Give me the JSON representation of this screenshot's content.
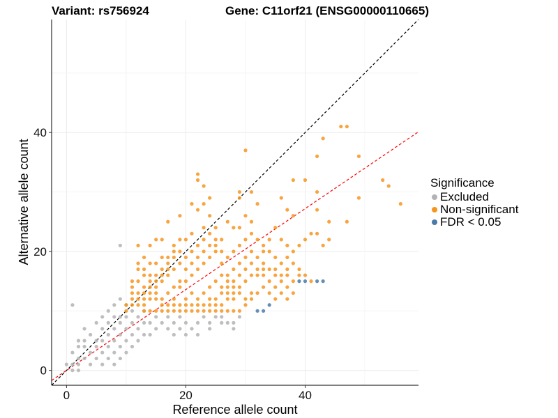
{
  "header": {
    "variant": "Variant: rs756924",
    "gene": "Gene: C11orf21 (ENSG00000110665)"
  },
  "legend": {
    "title": "Significance",
    "items": [
      {
        "label": "Excluded",
        "color": "#b3b3b3"
      },
      {
        "label": "Non-significant",
        "color": "#f7941d"
      },
      {
        "label": "FDR < 0.05",
        "color": "#4a7aa8"
      }
    ]
  },
  "chart_data": {
    "type": "scatter",
    "xlabel": "Reference allele count",
    "ylabel": "Alternative allele count",
    "xlim": [
      -2.5,
      59
    ],
    "ylim": [
      -2.5,
      59
    ],
    "xticks": [
      0,
      20,
      40
    ],
    "yticks": [
      0,
      20,
      40
    ],
    "grid": true,
    "lines": [
      {
        "name": "y = x",
        "color": "#000000",
        "slope": 1,
        "intercept": 0,
        "dashed": true
      },
      {
        "name": "fit",
        "color": "#ff0000",
        "slope": 0.68,
        "intercept": 0,
        "dashed": true
      }
    ],
    "series": [
      {
        "group": "Excluded",
        "color": "#b3b3b3",
        "points": [
          [
            1,
            11
          ],
          [
            9,
            21
          ],
          [
            0,
            1
          ],
          [
            1,
            0
          ],
          [
            1,
            1
          ],
          [
            1,
            3
          ],
          [
            2,
            0
          ],
          [
            2,
            1
          ],
          [
            2,
            2
          ],
          [
            2,
            4
          ],
          [
            2,
            5
          ],
          [
            3,
            2
          ],
          [
            3,
            4
          ],
          [
            3,
            5
          ],
          [
            3,
            7
          ],
          [
            4,
            1
          ],
          [
            4,
            3
          ],
          [
            4,
            6
          ],
          [
            5,
            2
          ],
          [
            5,
            4
          ],
          [
            5,
            5
          ],
          [
            5,
            8
          ],
          [
            6,
            1
          ],
          [
            6,
            3
          ],
          [
            6,
            5
          ],
          [
            6,
            7
          ],
          [
            6,
            9
          ],
          [
            7,
            2
          ],
          [
            7,
            4
          ],
          [
            7,
            6
          ],
          [
            7,
            8
          ],
          [
            7,
            10
          ],
          [
            8,
            1
          ],
          [
            8,
            3
          ],
          [
            8,
            5
          ],
          [
            8,
            7
          ],
          [
            8,
            9
          ],
          [
            8,
            11
          ],
          [
            9,
            2
          ],
          [
            9,
            4
          ],
          [
            9,
            6
          ],
          [
            9,
            8
          ],
          [
            9,
            9
          ],
          [
            9,
            12
          ],
          [
            10,
            3
          ],
          [
            10,
            5
          ],
          [
            10,
            7
          ],
          [
            10,
            9
          ],
          [
            10,
            11
          ],
          [
            11,
            4
          ],
          [
            11,
            6
          ],
          [
            11,
            8
          ],
          [
            11,
            10
          ],
          [
            12,
            5
          ],
          [
            12,
            7
          ],
          [
            12,
            9
          ],
          [
            13,
            6
          ],
          [
            13,
            8
          ],
          [
            13,
            10
          ],
          [
            14,
            6
          ],
          [
            14,
            8
          ],
          [
            15,
            7
          ],
          [
            15,
            9
          ],
          [
            16,
            8
          ],
          [
            17,
            7
          ],
          [
            17,
            9
          ],
          [
            18,
            6
          ],
          [
            18,
            8
          ],
          [
            19,
            7
          ],
          [
            19,
            9
          ],
          [
            20,
            6
          ],
          [
            20,
            8
          ],
          [
            21,
            7
          ],
          [
            22,
            6
          ],
          [
            22,
            8
          ],
          [
            23,
            9
          ],
          [
            24,
            7
          ],
          [
            24,
            8
          ],
          [
            25,
            9
          ],
          [
            26,
            8
          ],
          [
            26,
            9
          ],
          [
            27,
            8
          ],
          [
            28,
            7
          ],
          [
            28,
            8
          ],
          [
            29,
            9
          ]
        ]
      },
      {
        "group": "Non-significant",
        "color": "#f7941d",
        "points": [
          [
            30,
            37
          ],
          [
            46,
            41
          ],
          [
            47,
            41
          ],
          [
            43,
            39
          ],
          [
            49,
            36
          ],
          [
            42,
            36
          ],
          [
            29,
            30
          ],
          [
            29,
            29
          ],
          [
            22,
            33
          ],
          [
            22,
            32
          ],
          [
            23,
            31
          ],
          [
            23,
            28
          ],
          [
            24,
            29
          ],
          [
            24,
            26
          ],
          [
            21,
            28
          ],
          [
            22,
            27
          ],
          [
            53,
            32
          ],
          [
            54,
            31
          ],
          [
            56,
            28
          ],
          [
            44,
            25
          ],
          [
            47,
            25
          ],
          [
            49,
            29
          ],
          [
            42,
            30
          ],
          [
            42,
            27
          ],
          [
            42,
            23
          ],
          [
            43,
            21
          ],
          [
            44,
            22
          ],
          [
            40,
            32
          ],
          [
            38,
            32
          ],
          [
            38,
            26
          ],
          [
            36,
            29
          ],
          [
            37,
            27
          ],
          [
            31,
            30
          ],
          [
            32,
            28
          ],
          [
            29,
            24
          ],
          [
            27,
            25
          ],
          [
            26,
            22
          ],
          [
            25,
            24
          ],
          [
            25,
            21
          ],
          [
            24,
            23
          ],
          [
            23,
            24
          ],
          [
            19,
            26
          ],
          [
            17,
            25
          ],
          [
            19,
            22
          ],
          [
            18,
            21
          ],
          [
            16,
            22
          ],
          [
            15,
            22
          ],
          [
            14,
            21
          ],
          [
            12,
            21
          ],
          [
            13,
            19
          ],
          [
            12,
            17
          ],
          [
            11,
            13
          ],
          [
            11,
            12
          ],
          [
            11,
            11
          ],
          [
            10,
            11
          ],
          [
            10,
            10
          ],
          [
            12,
            15
          ],
          [
            13,
            14
          ],
          [
            14,
            13
          ],
          [
            15,
            12
          ],
          [
            16,
            11
          ],
          [
            17,
            13
          ],
          [
            18,
            12
          ],
          [
            19,
            14
          ],
          [
            20,
            15
          ],
          [
            21,
            16
          ],
          [
            22,
            17
          ],
          [
            23,
            18
          ],
          [
            24,
            19
          ],
          [
            25,
            20
          ],
          [
            26,
            18
          ],
          [
            27,
            16
          ],
          [
            28,
            17
          ],
          [
            29,
            18
          ],
          [
            30,
            19
          ],
          [
            31,
            20
          ],
          [
            32,
            17
          ],
          [
            33,
            16
          ],
          [
            34,
            15
          ],
          [
            35,
            14
          ],
          [
            36,
            13
          ],
          [
            37,
            12
          ],
          [
            38,
            15
          ],
          [
            39,
            16
          ],
          [
            36,
            16
          ],
          [
            37,
            17
          ],
          [
            35,
            19
          ],
          [
            33,
            20
          ],
          [
            34,
            22
          ],
          [
            36,
            22
          ],
          [
            37,
            21
          ],
          [
            35,
            24
          ],
          [
            31,
            25
          ],
          [
            30,
            26
          ],
          [
            28,
            24
          ],
          [
            26,
            20
          ],
          [
            20,
            22
          ],
          [
            21,
            23
          ],
          [
            18,
            19
          ],
          [
            17,
            18
          ],
          [
            16,
            17
          ],
          [
            15,
            16
          ],
          [
            14,
            15
          ],
          [
            13,
            12
          ],
          [
            12,
            11
          ],
          [
            13,
            10
          ],
          [
            14,
            10
          ],
          [
            15,
            10
          ],
          [
            16,
            10
          ],
          [
            17,
            10
          ],
          [
            18,
            10
          ],
          [
            19,
            10
          ],
          [
            20,
            10
          ],
          [
            21,
            10
          ],
          [
            22,
            10
          ],
          [
            23,
            10
          ],
          [
            24,
            10
          ],
          [
            25,
            10
          ],
          [
            26,
            10
          ],
          [
            27,
            10
          ],
          [
            28,
            10
          ],
          [
            29,
            10
          ],
          [
            30,
            11
          ],
          [
            31,
            12
          ],
          [
            32,
            13
          ],
          [
            33,
            14
          ],
          [
            34,
            13
          ],
          [
            35,
            12
          ],
          [
            22,
            12
          ],
          [
            23,
            13
          ],
          [
            24,
            14
          ],
          [
            25,
            15
          ],
          [
            26,
            16
          ],
          [
            27,
            15
          ],
          [
            28,
            14
          ],
          [
            29,
            13
          ],
          [
            30,
            12
          ],
          [
            31,
            13
          ],
          [
            20,
            12
          ],
          [
            21,
            13
          ],
          [
            18,
            14
          ],
          [
            19,
            15
          ],
          [
            17,
            16
          ],
          [
            16,
            15
          ],
          [
            15,
            14
          ],
          [
            14,
            14
          ],
          [
            13,
            13
          ],
          [
            12,
            13
          ],
          [
            11,
            14
          ],
          [
            20,
            17
          ],
          [
            21,
            18
          ],
          [
            22,
            19
          ],
          [
            23,
            20
          ],
          [
            24,
            21
          ],
          [
            25,
            22
          ],
          [
            20,
            19
          ],
          [
            19,
            18
          ],
          [
            18,
            17
          ],
          [
            17,
            17
          ],
          [
            16,
            16
          ],
          [
            15,
            15
          ],
          [
            14,
            16
          ],
          [
            13,
            17
          ],
          [
            12,
            18
          ],
          [
            21,
            20
          ],
          [
            22,
            21
          ],
          [
            23,
            22
          ],
          [
            19,
            20
          ],
          [
            18,
            20
          ],
          [
            17,
            19
          ],
          [
            16,
            19
          ],
          [
            15,
            18
          ],
          [
            14,
            18
          ],
          [
            13,
            16
          ],
          [
            27,
            19
          ],
          [
            28,
            20
          ],
          [
            29,
            21
          ],
          [
            30,
            22
          ],
          [
            31,
            23
          ],
          [
            32,
            22
          ],
          [
            33,
            21
          ],
          [
            34,
            20
          ],
          [
            33,
            18
          ],
          [
            32,
            19
          ],
          [
            31,
            18
          ],
          [
            30,
            17
          ],
          [
            29,
            16
          ],
          [
            28,
            15
          ],
          [
            27,
            14
          ],
          [
            26,
            13
          ],
          [
            25,
            12
          ],
          [
            24,
            11
          ],
          [
            23,
            11
          ],
          [
            22,
            11
          ],
          [
            21,
            11
          ],
          [
            20,
            11
          ],
          [
            19,
            11
          ],
          [
            18,
            11
          ],
          [
            17,
            11
          ],
          [
            16,
            12
          ],
          [
            15,
            13
          ],
          [
            14,
            12
          ],
          [
            13,
            11
          ],
          [
            12,
            12
          ],
          [
            11,
            15
          ],
          [
            35,
            17
          ],
          [
            36,
            18
          ],
          [
            37,
            19
          ],
          [
            38,
            20
          ],
          [
            39,
            21
          ],
          [
            40,
            22
          ],
          [
            41,
            23
          ],
          [
            38,
            18
          ],
          [
            39,
            17
          ],
          [
            40,
            16
          ],
          [
            41,
            15
          ],
          [
            37,
            14
          ],
          [
            38,
            13
          ],
          [
            28,
            12
          ],
          [
            27,
            12
          ],
          [
            26,
            11
          ],
          [
            25,
            11
          ],
          [
            24,
            12
          ],
          [
            26,
            14
          ],
          [
            27,
            13
          ],
          [
            28,
            13
          ],
          [
            29,
            14
          ],
          [
            30,
            15
          ],
          [
            31,
            16
          ],
          [
            32,
            16
          ],
          [
            33,
            17
          ],
          [
            34,
            17
          ],
          [
            35,
            16
          ],
          [
            36,
            15
          ],
          [
            37,
            16
          ]
        ]
      },
      {
        "group": "FDR < 0.05",
        "color": "#4a7aa8",
        "points": [
          [
            32,
            10
          ],
          [
            33,
            10
          ],
          [
            34,
            11
          ],
          [
            39,
            15
          ],
          [
            40,
            15
          ],
          [
            42,
            15
          ],
          [
            43,
            15
          ]
        ]
      }
    ]
  }
}
